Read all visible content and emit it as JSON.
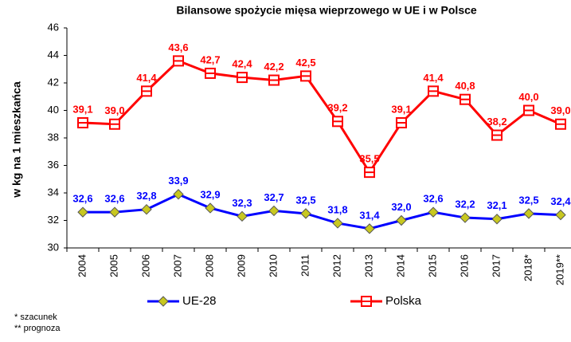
{
  "chart_data": {
    "type": "line",
    "title": "Bilansowe spożycie mięsa wieprzowego w UE i w Polsce",
    "y_label": "w kg na 1 mieszkańca",
    "categories": [
      "2004",
      "2005",
      "2006",
      "2007",
      "2008",
      "2009",
      "2010",
      "2011",
      "2012",
      "2013",
      "2014",
      "2015",
      "2016",
      "2017",
      "2018*",
      "2019**"
    ],
    "series": [
      {
        "name": "UE-28",
        "color": "#0000ff",
        "marker": "diamond",
        "marker_color": "#c8c820",
        "values": [
          32.6,
          32.6,
          32.8,
          33.9,
          32.9,
          32.3,
          32.7,
          32.5,
          31.8,
          31.4,
          32.0,
          32.6,
          32.2,
          32.1,
          32.5,
          32.4
        ],
        "value_labels": [
          "32,6",
          "32,6",
          "32,8",
          "33,9",
          "32,9",
          "32,3",
          "32,7",
          "32,5",
          "31,8",
          "31,4",
          "32,0",
          "32,6",
          "32,2",
          "32,1",
          "32,5",
          "32,4"
        ]
      },
      {
        "name": "Polska",
        "color": "#ff0000",
        "marker": "square",
        "marker_color": "#ffffff",
        "values": [
          39.1,
          39.0,
          41.4,
          43.6,
          42.7,
          42.4,
          42.2,
          42.5,
          39.2,
          35.5,
          39.1,
          41.4,
          40.8,
          38.2,
          40.0,
          39.0
        ],
        "value_labels": [
          "39,1",
          "39,0",
          "41,4",
          "43,6",
          "42,7",
          "42,4",
          "42,2",
          "42,5",
          "39,2",
          "35,5",
          "39,1",
          "41,4",
          "40,8",
          "38,2",
          "40,0",
          "39,0"
        ]
      }
    ],
    "ylim": [
      30,
      46
    ],
    "yticks": [
      30,
      32,
      34,
      36,
      38,
      40,
      42,
      44,
      46
    ],
    "grid": false,
    "notes": [
      "* szacunek",
      "** prognoza"
    ]
  }
}
